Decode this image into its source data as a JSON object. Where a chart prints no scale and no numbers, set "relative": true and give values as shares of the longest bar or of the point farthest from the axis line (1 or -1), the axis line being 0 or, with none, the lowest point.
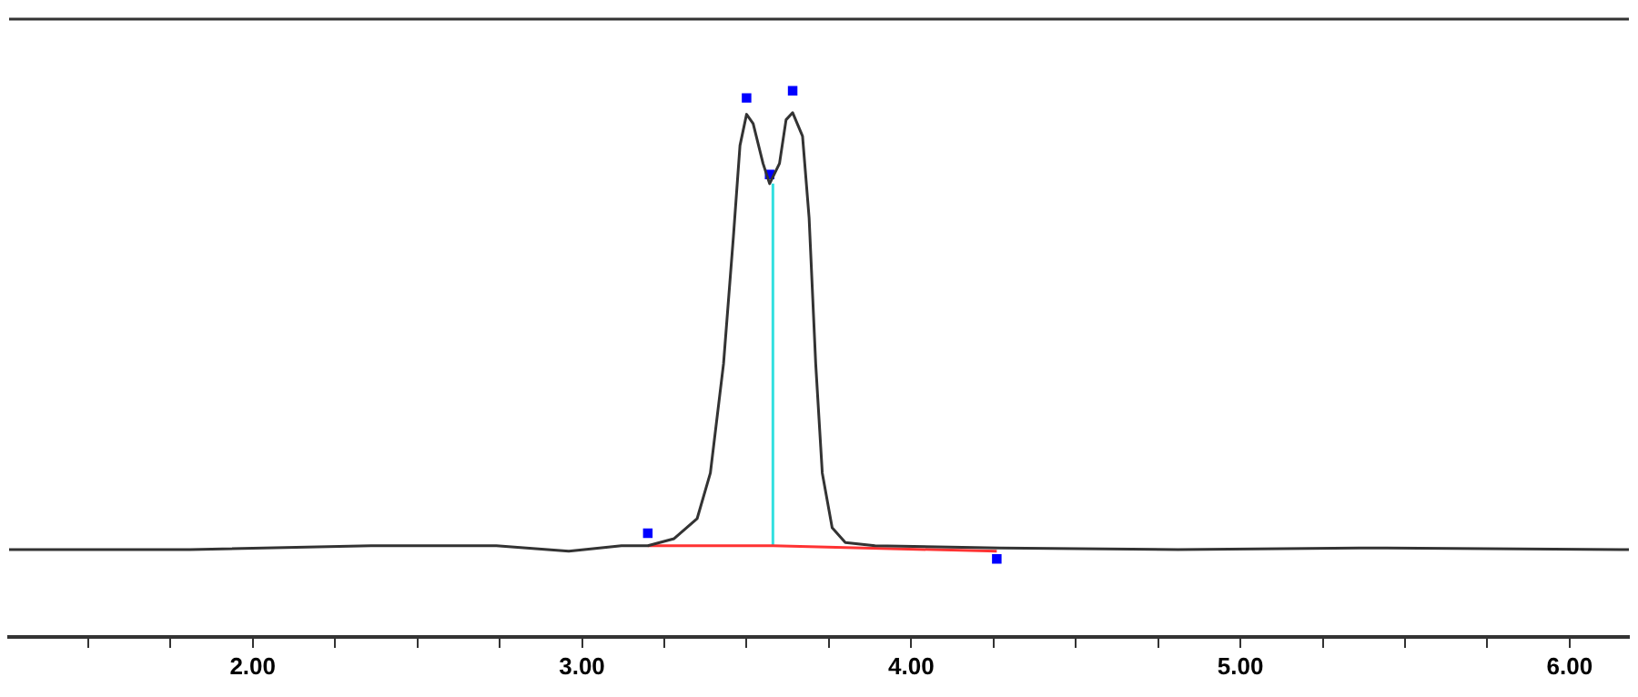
{
  "chart_data": {
    "type": "line",
    "relative": true,
    "legend": false,
    "grid": false,
    "xlim": [
      1.26,
      6.18
    ],
    "xticks": [
      {
        "value": 1.5,
        "label": null
      },
      {
        "value": 1.75,
        "label": null
      },
      {
        "value": 2,
        "label": "2.00"
      },
      {
        "value": 2.25,
        "label": null
      },
      {
        "value": 2.5,
        "label": null
      },
      {
        "value": 2.75,
        "label": null
      },
      {
        "value": 3,
        "label": "3.00"
      },
      {
        "value": 3.25,
        "label": null
      },
      {
        "value": 3.5,
        "label": null
      },
      {
        "value": 3.75,
        "label": null
      },
      {
        "value": 4,
        "label": "4.00"
      },
      {
        "value": 4.25,
        "label": null
      },
      {
        "value": 4.5,
        "label": null
      },
      {
        "value": 4.75,
        "label": null
      },
      {
        "value": 5,
        "label": "5.00"
      },
      {
        "value": 5.25,
        "label": null
      },
      {
        "value": 5.5,
        "label": null
      },
      {
        "value": 5.75,
        "label": null
      },
      {
        "value": 6,
        "label": "6.00"
      }
    ],
    "series": [
      {
        "color": "#333333",
        "x": [
          1.26,
          1.81,
          2.36,
          2.74,
          2.96,
          3.12,
          3.2,
          3.28,
          3.35,
          3.39,
          3.43,
          3.46,
          3.48,
          3.5,
          3.52,
          3.55,
          3.57,
          3.6,
          3.62,
          3.64,
          3.67,
          3.69,
          3.71,
          3.73,
          3.76,
          3.8,
          3.89,
          4.27,
          4.81,
          5.36,
          6.18
        ],
        "values": [
          0.16,
          0.16,
          0.167,
          0.167,
          0.157,
          0.167,
          0.167,
          0.18,
          0.217,
          0.3,
          0.5,
          0.733,
          0.9,
          0.957,
          0.94,
          0.867,
          0.83,
          0.867,
          0.947,
          0.96,
          0.917,
          0.767,
          0.5,
          0.3,
          0.2,
          0.173,
          0.167,
          0.163,
          0.16,
          0.163,
          0.16
        ]
      },
      {
        "type": "line",
        "color": "#ff3333",
        "x": [
          3.2,
          3.58,
          4.26
        ],
        "values": [
          0.167,
          0.167,
          0.157
        ]
      },
      {
        "type": "line",
        "color": "#33e0e0",
        "x": [
          3.58,
          3.58
        ],
        "values": [
          0.167,
          0.83
        ]
      },
      {
        "type": "scatter",
        "marker": "square",
        "color": "#0000ff",
        "x": [
          3.2,
          3.5,
          3.57,
          3.64,
          4.26
        ],
        "values": [
          0.19,
          0.987,
          0.847,
          1,
          0.143
        ]
      }
    ]
  }
}
